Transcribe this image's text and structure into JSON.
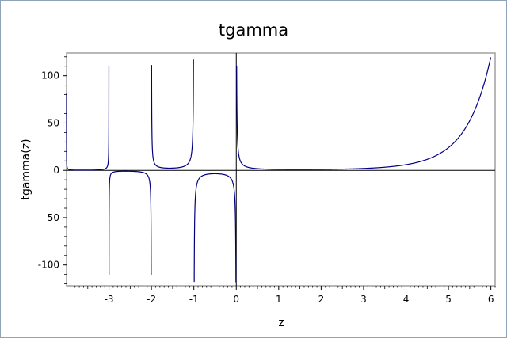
{
  "chart_data": {
    "type": "line",
    "title": "tgamma",
    "xlabel": "z",
    "ylabel": "tgamma(z)",
    "xlim": [
      -4,
      6.1
    ],
    "ylim": [
      -122,
      124
    ],
    "x_ticks": [
      -3,
      -2,
      -1,
      0,
      1,
      2,
      3,
      4,
      5,
      6
    ],
    "x_tick_labels": [
      "-3",
      "-2",
      "-1",
      "0",
      "1",
      "2",
      "3",
      "4",
      "5",
      "6"
    ],
    "y_ticks": [
      -100,
      -50,
      0,
      50,
      100
    ],
    "y_tick_labels": [
      "-100",
      "-50",
      "0",
      "50",
      "100"
    ],
    "grid": false,
    "legend": "none",
    "clip_range": [
      -120,
      120
    ],
    "series": [
      {
        "function": "tgamma(z)",
        "x_domain": [
          -4,
          6
        ],
        "color": "#000080"
      }
    ],
    "colors": {
      "line": "#000080",
      "frame_border": "#8fa3b8",
      "plot_border": "#a0a0a0",
      "zero_axes": "#000000"
    }
  }
}
